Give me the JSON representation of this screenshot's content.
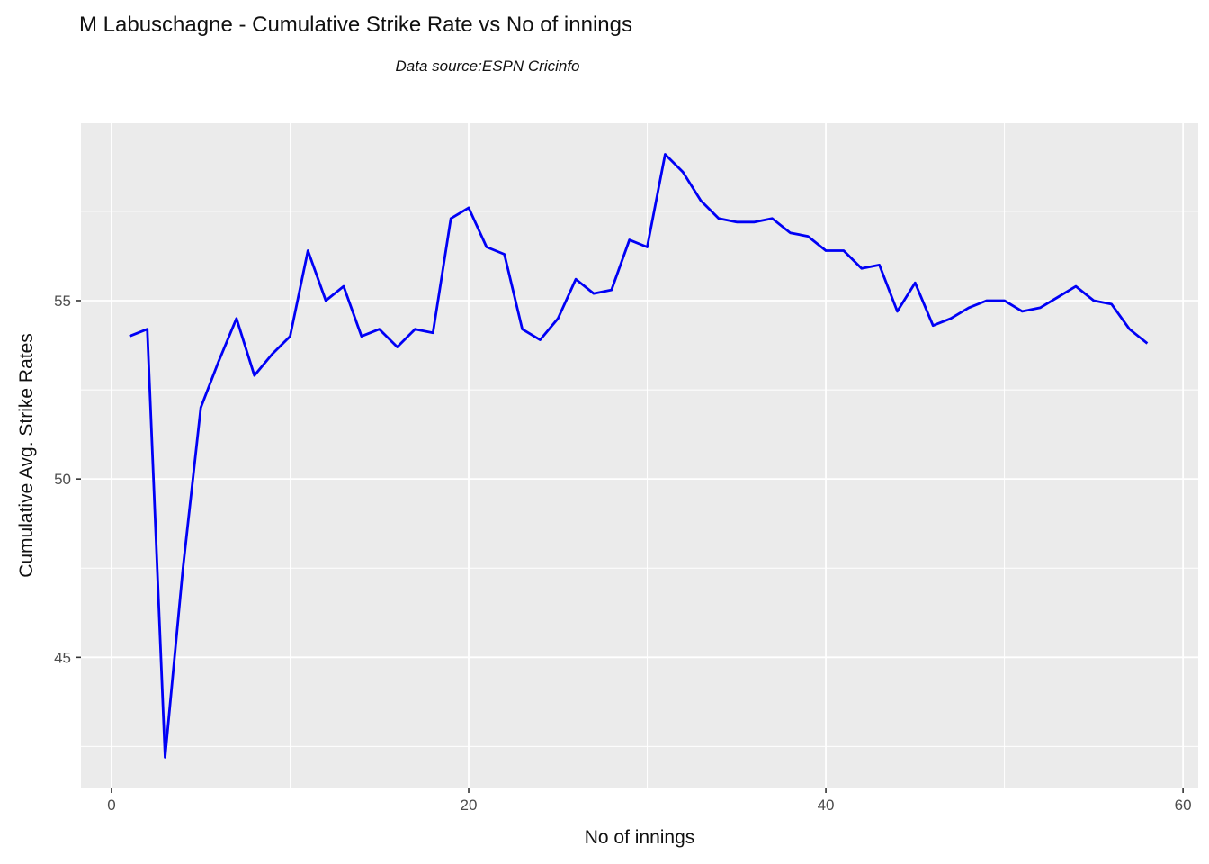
{
  "chart_data": {
    "type": "line",
    "title": "M Labuschagne - Cumulative Strike Rate vs No of innings",
    "subtitle": "Data source:ESPN Cricinfo",
    "xlabel": "No of innings",
    "ylabel": "Cumulative Avg. Strike Rates",
    "x": [
      1,
      2,
      3,
      4,
      5,
      6,
      7,
      8,
      9,
      10,
      11,
      12,
      13,
      14,
      15,
      16,
      17,
      18,
      19,
      20,
      21,
      22,
      23,
      24,
      25,
      26,
      27,
      28,
      29,
      30,
      31,
      32,
      33,
      34,
      35,
      36,
      37,
      38,
      39,
      40,
      41,
      42,
      43,
      44,
      45,
      46,
      47,
      48,
      49,
      50,
      51,
      52,
      53,
      54,
      55,
      56,
      57,
      58
    ],
    "y": [
      54.0,
      54.2,
      42.2,
      47.5,
      52.0,
      53.3,
      54.5,
      52.9,
      53.5,
      54.0,
      56.4,
      55.0,
      55.4,
      54.0,
      54.2,
      53.7,
      54.2,
      54.1,
      57.3,
      57.6,
      56.5,
      56.3,
      54.2,
      53.9,
      54.5,
      55.6,
      55.2,
      55.3,
      56.7,
      56.5,
      59.1,
      58.6,
      57.8,
      57.3,
      57.2,
      57.2,
      57.3,
      56.9,
      56.8,
      56.4,
      56.4,
      55.9,
      56.0,
      54.7,
      55.5,
      54.3,
      54.5,
      54.8,
      55.0,
      55.0,
      54.7,
      54.8,
      55.1,
      55.4,
      55.0,
      54.9,
      54.2,
      53.8
    ],
    "x_tick_labels": [
      "0",
      "20",
      "40",
      "60"
    ],
    "x_tick_values": [
      0,
      20,
      40,
      60
    ],
    "x_minor_values": [
      10,
      30,
      50
    ],
    "y_tick_labels": [
      "45",
      "50",
      "55"
    ],
    "y_tick_values": [
      45,
      50,
      55
    ],
    "y_minor_values": [
      42.5,
      47.5,
      52.5,
      57.5
    ],
    "xlim": [
      -1.71,
      60.85
    ],
    "ylim": [
      41.35,
      59.97
    ],
    "grid": "on",
    "legend_position": "none",
    "colors": {
      "line": "#0000F5",
      "panel_background": "#EBEBEB",
      "gridline": "#FFFFFF",
      "tick_mark": "#333333",
      "tick_label": "#4D4D4D",
      "text": "#111111"
    }
  }
}
